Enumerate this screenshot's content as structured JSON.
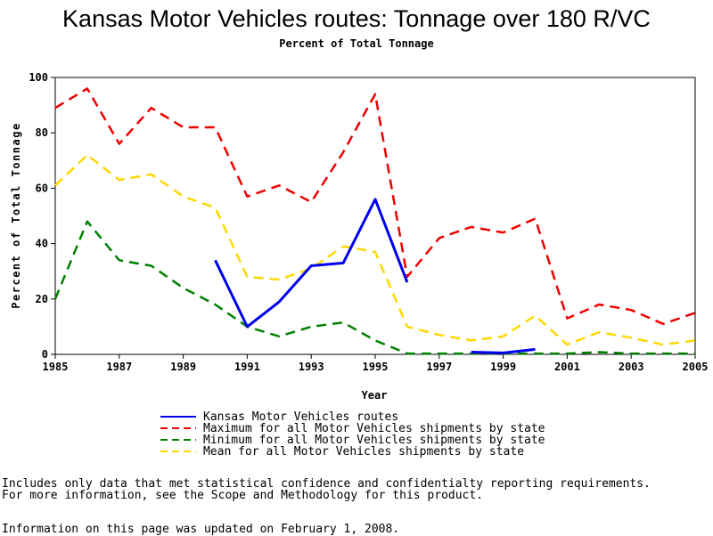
{
  "chart_data": {
    "type": "line",
    "title": "Kansas Motor Vehicles routes: Tonnage over 180 R/VC",
    "subtitle": "Percent of Total Tonnage",
    "xlabel": "Year",
    "ylabel": "Percent of Total Tonnage",
    "xlim": [
      1985,
      2005
    ],
    "ylim": [
      0,
      100
    ],
    "xticks": [
      "1985",
      "1987",
      "1989",
      "1991",
      "1993",
      "1995",
      "1997",
      "1999",
      "2001",
      "2003",
      "2005"
    ],
    "yticks": [
      "0",
      "20",
      "40",
      "60",
      "80",
      "100"
    ],
    "grid": false,
    "legend_position": "bottom",
    "series": [
      {
        "name": "Kansas Motor Vehicles routes",
        "color": "#0000ee",
        "dash": "solid",
        "points": [
          [
            1990,
            34
          ],
          [
            1991,
            10
          ],
          [
            1992,
            19
          ],
          [
            1993,
            32
          ],
          [
            1994,
            33
          ],
          [
            1995,
            56
          ],
          [
            1996,
            26
          ]
        ],
        "points2": [
          [
            1998,
            0.8
          ],
          [
            1999,
            0.5
          ],
          [
            2000,
            1.8
          ]
        ]
      },
      {
        "name": "Maximum for all Motor Vehicles shipments by state",
        "color": "#ee0000",
        "dash": "dashed",
        "points": [
          [
            1985,
            89
          ],
          [
            1986,
            96
          ],
          [
            1987,
            76
          ],
          [
            1988,
            89
          ],
          [
            1989,
            82
          ],
          [
            1990,
            82
          ],
          [
            1991,
            57
          ],
          [
            1992,
            61
          ],
          [
            1993,
            55
          ],
          [
            1994,
            73
          ],
          [
            1995,
            94
          ],
          [
            1996,
            28
          ],
          [
            1997,
            42
          ],
          [
            1998,
            46
          ],
          [
            1999,
            44
          ],
          [
            2000,
            49
          ],
          [
            2001,
            13
          ],
          [
            2002,
            18
          ],
          [
            2003,
            16
          ],
          [
            2004,
            11
          ],
          [
            2005,
            15
          ]
        ]
      },
      {
        "name": "Minimum for all Motor Vehicles shipments by state",
        "color": "#008000",
        "dash": "dashed",
        "points": [
          [
            1985,
            20
          ],
          [
            1986,
            48
          ],
          [
            1987,
            34
          ],
          [
            1988,
            32
          ],
          [
            1989,
            24
          ],
          [
            1990,
            18
          ],
          [
            1991,
            10
          ],
          [
            1992,
            6.5
          ],
          [
            1993,
            10
          ],
          [
            1994,
            11.5
          ],
          [
            1995,
            5
          ],
          [
            1996,
            0.3
          ],
          [
            1997,
            0.3
          ],
          [
            1998,
            0.3
          ],
          [
            1999,
            0.3
          ],
          [
            2000,
            0.3
          ],
          [
            2001,
            0.3
          ],
          [
            2002,
            0.8
          ],
          [
            2003,
            0.3
          ],
          [
            2004,
            0.3
          ],
          [
            2005,
            0.3
          ]
        ]
      },
      {
        "name": "Mean for all Motor Vehicles shipments by state",
        "color": "#ffd700",
        "dash": "dashed",
        "points": [
          [
            1985,
            61
          ],
          [
            1986,
            72
          ],
          [
            1987,
            63
          ],
          [
            1988,
            65
          ],
          [
            1989,
            57
          ],
          [
            1990,
            53
          ],
          [
            1991,
            28
          ],
          [
            1992,
            27
          ],
          [
            1993,
            31
          ],
          [
            1994,
            39
          ],
          [
            1995,
            37
          ],
          [
            1996,
            10
          ],
          [
            1997,
            7
          ],
          [
            1998,
            5
          ],
          [
            1999,
            6.5
          ],
          [
            2000,
            14
          ],
          [
            2001,
            3.5
          ],
          [
            2002,
            8
          ],
          [
            2003,
            6
          ],
          [
            2004,
            3.5
          ],
          [
            2005,
            5
          ]
        ]
      }
    ]
  },
  "notes": {
    "line1": "Includes only data that met statistical confidence and confidentialty reporting requirements.",
    "line2": "For more information, see the Scope and Methodology for this product.",
    "updated": "Information on this page was updated on February 1, 2008."
  }
}
